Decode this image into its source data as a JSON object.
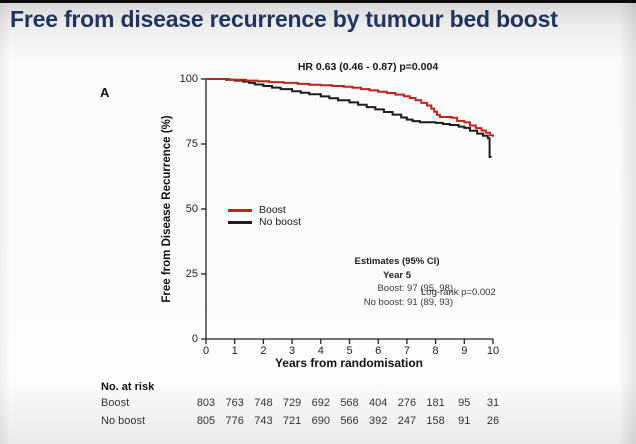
{
  "slide": {
    "title": "Free from disease recurrence by tumour bed boost"
  },
  "panel_label": "A",
  "chart_data": {
    "type": "line",
    "subtype": "kaplan-meier-step",
    "annotation_hr": "HR 0.63 (0.46 - 0.87) p=0.004",
    "xlabel": "Years from randomisation",
    "ylabel": "Free from Disease Recurrence (%)",
    "xlim": [
      0,
      10
    ],
    "ylim": [
      0,
      100
    ],
    "xticks": [
      0,
      1,
      2,
      3,
      4,
      5,
      6,
      7,
      8,
      9,
      10
    ],
    "yticks": [
      0,
      25,
      50,
      75,
      100
    ],
    "grid": false,
    "legend_position": "inside-left-middle",
    "legend": [
      {
        "label": "Boost",
        "color": "#c0251c"
      },
      {
        "label": "No boost",
        "color": "#1c1c1c"
      }
    ],
    "series": [
      {
        "name": "Boost",
        "color": "#c0251c",
        "points": [
          [
            0,
            100
          ],
          [
            0.6,
            100
          ],
          [
            0.8,
            99.7
          ],
          [
            1.4,
            99.4
          ],
          [
            1.8,
            99.1
          ],
          [
            2.2,
            98.8
          ],
          [
            2.7,
            98.5
          ],
          [
            3.2,
            98.1
          ],
          [
            3.6,
            97.8
          ],
          [
            4.0,
            97.6
          ],
          [
            4.4,
            97.3
          ],
          [
            4.8,
            97.0
          ],
          [
            5.1,
            96.6
          ],
          [
            5.4,
            96.1
          ],
          [
            5.7,
            95.6
          ],
          [
            6.0,
            95.1
          ],
          [
            6.3,
            94.6
          ],
          [
            6.6,
            94.0
          ],
          [
            6.9,
            93.4
          ],
          [
            7.1,
            92.7
          ],
          [
            7.3,
            91.8
          ],
          [
            7.5,
            90.8
          ],
          [
            7.7,
            89.8
          ],
          [
            7.85,
            88.6
          ],
          [
            7.95,
            87.4
          ],
          [
            8.05,
            86.2
          ],
          [
            8.15,
            85.4
          ],
          [
            8.55,
            85.1
          ],
          [
            8.75,
            83.9
          ],
          [
            9.0,
            83.3
          ],
          [
            9.2,
            82.1
          ],
          [
            9.4,
            81.1
          ],
          [
            9.6,
            80.2
          ],
          [
            9.75,
            79.3
          ],
          [
            9.9,
            78.4
          ],
          [
            10,
            77.8
          ]
        ]
      },
      {
        "name": "No boost",
        "color": "#1c1c1c",
        "points": [
          [
            0,
            100
          ],
          [
            0.5,
            100
          ],
          [
            0.7,
            99.7
          ],
          [
            1.0,
            99.4
          ],
          [
            1.3,
            99.0
          ],
          [
            1.5,
            98.5
          ],
          [
            1.7,
            97.9
          ],
          [
            2.0,
            97.3
          ],
          [
            2.3,
            96.7
          ],
          [
            2.6,
            96.1
          ],
          [
            3.0,
            95.3
          ],
          [
            3.3,
            94.7
          ],
          [
            3.6,
            94.1
          ],
          [
            4.0,
            93.3
          ],
          [
            4.3,
            92.6
          ],
          [
            4.6,
            91.8
          ],
          [
            5.0,
            91.0
          ],
          [
            5.3,
            90.1
          ],
          [
            5.6,
            89.2
          ],
          [
            5.9,
            88.3
          ],
          [
            6.2,
            87.3
          ],
          [
            6.5,
            86.3
          ],
          [
            6.8,
            85.2
          ],
          [
            7.0,
            84.4
          ],
          [
            7.2,
            83.8
          ],
          [
            7.45,
            83.4
          ],
          [
            8.0,
            83.1
          ],
          [
            8.25,
            82.7
          ],
          [
            8.5,
            82.3
          ],
          [
            8.8,
            81.7
          ],
          [
            9.0,
            81.2
          ],
          [
            9.2,
            80.1
          ],
          [
            9.45,
            79.0
          ],
          [
            9.65,
            78.2
          ],
          [
            9.82,
            77.2
          ],
          [
            9.88,
            70.0
          ],
          [
            9.92,
            69.8
          ]
        ]
      }
    ],
    "annotations": {
      "estimates_title": "Estimates (95% CI)",
      "estimates_year": "Year 5",
      "estimates_boost": "Boost:  97 (95, 98)",
      "estimates_noboost": "No boost:  91 (89, 93)",
      "logrank": "Log-rank p=0.002"
    }
  },
  "risk_table": {
    "title": "No. at risk",
    "rows": [
      {
        "label": "Boost",
        "values": [
          803,
          763,
          748,
          729,
          692,
          568,
          404,
          276,
          181,
          95,
          31
        ]
      },
      {
        "label": "No boost",
        "values": [
          805,
          776,
          743,
          721,
          690,
          566,
          392,
          247,
          158,
          91,
          26
        ]
      }
    ]
  },
  "colors": {
    "title": "#1f355f",
    "axis": "#222222"
  }
}
